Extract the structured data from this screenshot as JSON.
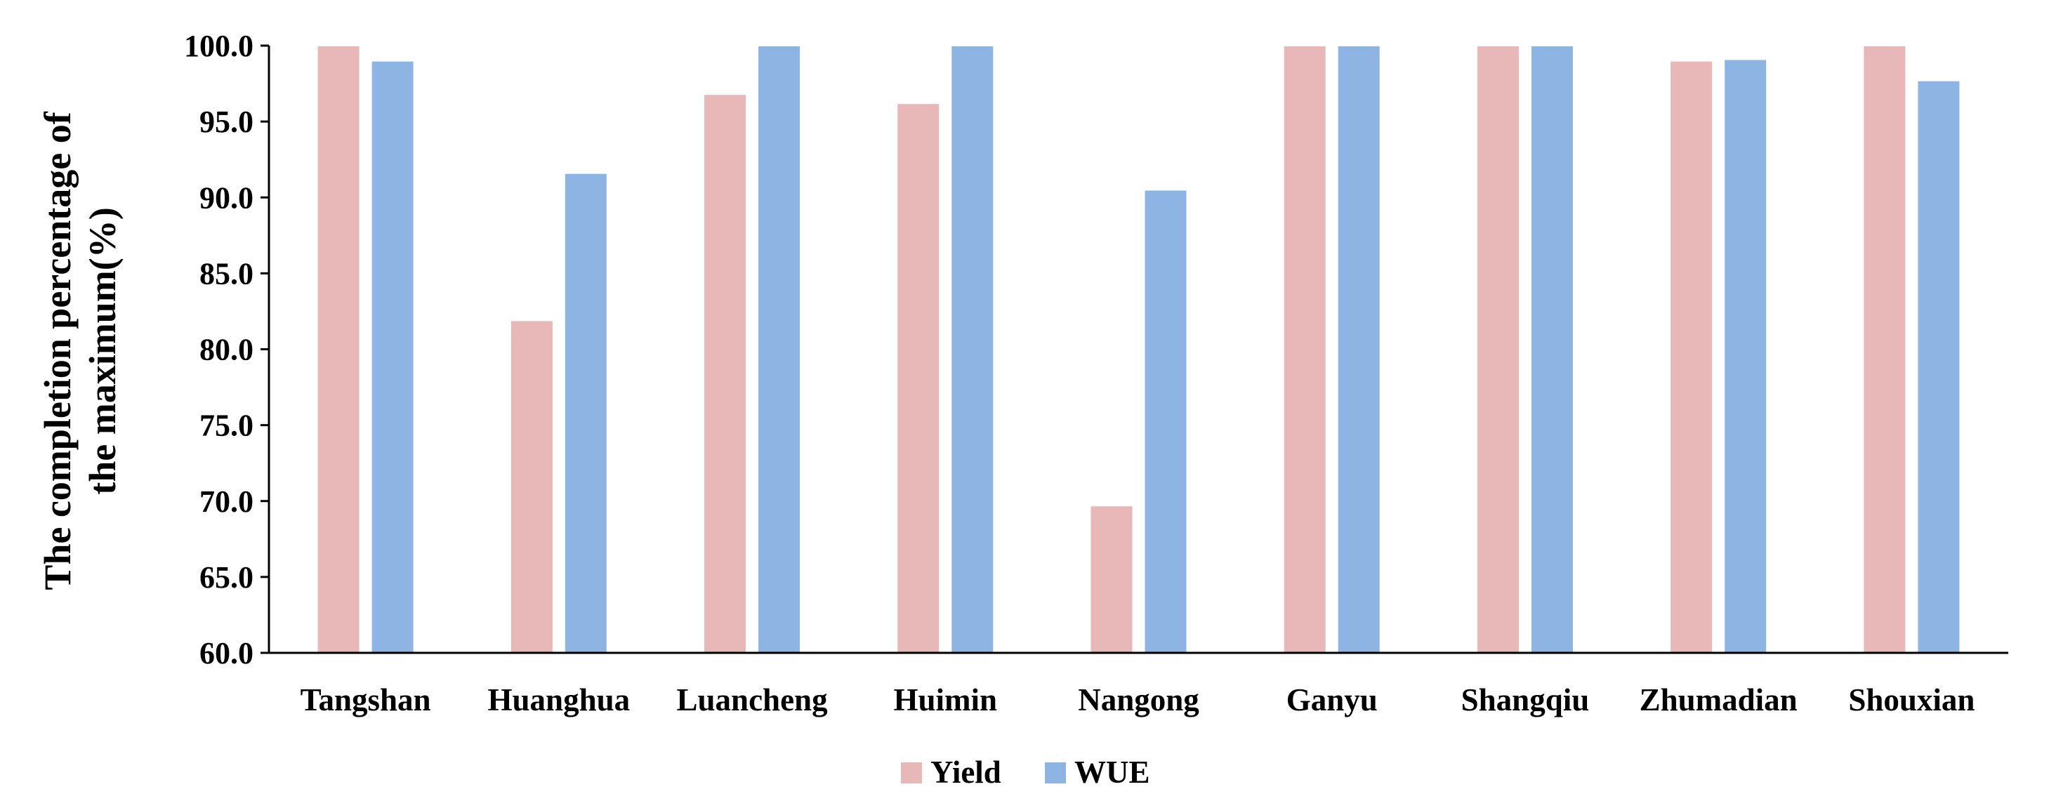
{
  "chart_data": {
    "type": "bar",
    "title": "",
    "xlabel": "",
    "ylabel_lines": [
      "The completion percentage of",
      "the maximum(%)"
    ],
    "ylim": [
      60,
      100
    ],
    "yticks": [
      "60.0",
      "65.0",
      "70.0",
      "75.0",
      "80.0",
      "85.0",
      "90.0",
      "95.0",
      "100.0"
    ],
    "grid": false,
    "legend_position": "bottom",
    "categories": [
      "Tangshan",
      "Huanghua",
      "Luancheng",
      "Huimin",
      "Nangong",
      "Ganyu",
      "Shangqiu",
      "Zhumadian",
      "Shouxian"
    ],
    "series": [
      {
        "name": "Yield",
        "color": "#e8b8b8",
        "values": [
          100.0,
          81.9,
          96.8,
          96.2,
          69.7,
          100.0,
          100.0,
          99.0,
          100.0
        ]
      },
      {
        "name": "WUE",
        "color": "#8eb4e3",
        "values": [
          99.0,
          91.6,
          100.0,
          100.0,
          90.5,
          100.0,
          100.0,
          99.1,
          97.7
        ]
      }
    ]
  }
}
